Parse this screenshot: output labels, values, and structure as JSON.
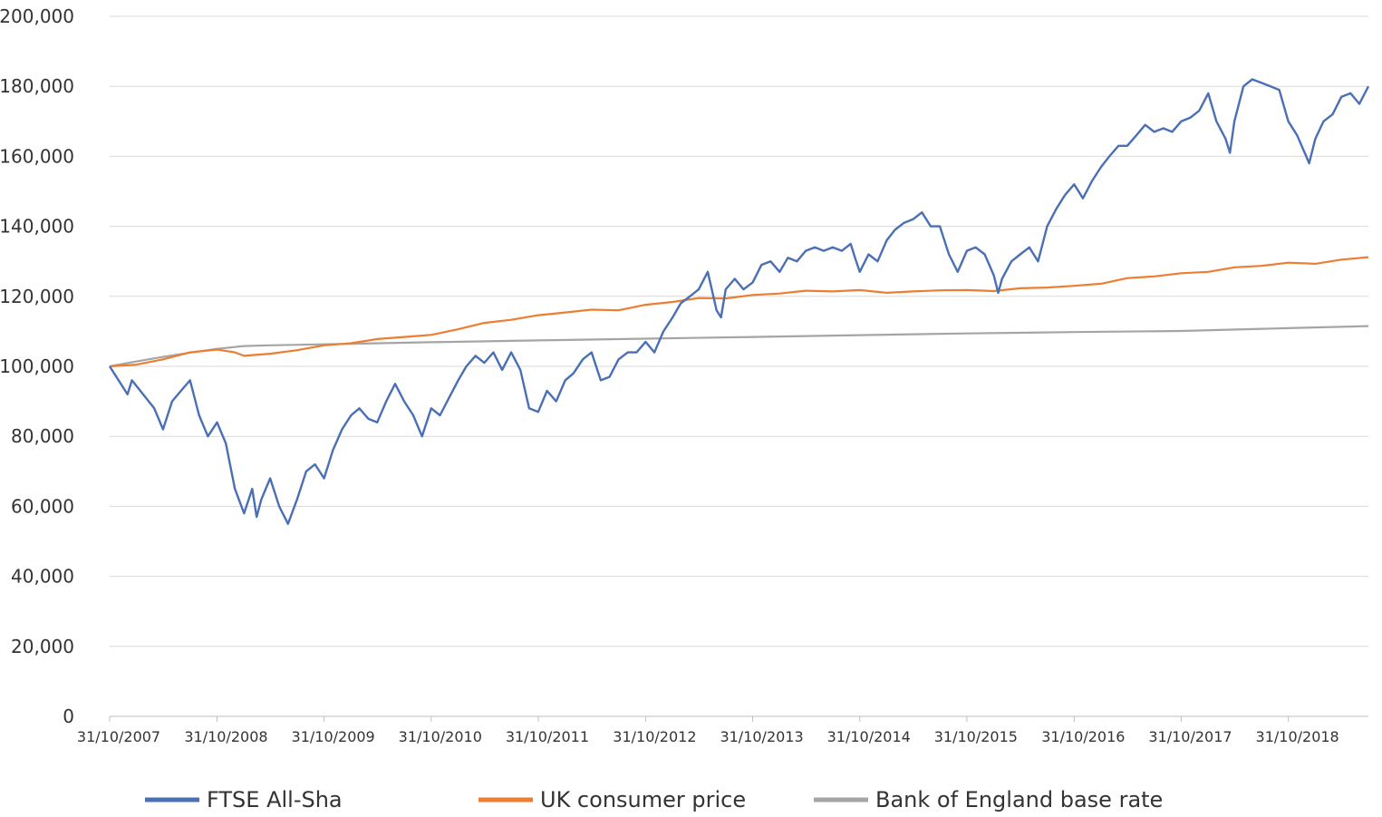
{
  "chart_data": {
    "type": "line",
    "x_format": "DD/MM/YYYY",
    "x_ticks": [
      "31/10/2007",
      "31/10/2008",
      "31/10/2009",
      "31/10/2010",
      "31/10/2011",
      "31/10/2012",
      "31/10/2013",
      "31/10/2014",
      "31/10/2015",
      "31/10/2016",
      "31/10/2017",
      "31/10/2018"
    ],
    "x_range": [
      "31/10/2007",
      "31/07/2019"
    ],
    "y_ticks": [
      "0",
      "20,000",
      "40,000",
      "60,000",
      "80,000",
      "100,000",
      "120,000",
      "140,000",
      "160,000",
      "180,000",
      "200,000"
    ],
    "ylim": [
      0,
      200000
    ],
    "grid": true,
    "legend_position": "bottom",
    "series": [
      {
        "name": "FTSE All-Sha",
        "color": "#4a6fb5",
        "points": [
          [
            "31/10/2007",
            100000
          ],
          [
            "31/12/2007",
            92000
          ],
          [
            "15/01/2008",
            96000
          ],
          [
            "31/03/2008",
            88000
          ],
          [
            "30/04/2008",
            82000
          ],
          [
            "31/05/2008",
            90000
          ],
          [
            "30/06/2008",
            93000
          ],
          [
            "31/07/2008",
            96000
          ],
          [
            "31/08/2008",
            86000
          ],
          [
            "30/09/2008",
            80000
          ],
          [
            "31/10/2008",
            84000
          ],
          [
            "30/11/2008",
            78000
          ],
          [
            "31/12/2008",
            65000
          ],
          [
            "31/01/2009",
            58000
          ],
          [
            "28/02/2009",
            65000
          ],
          [
            "15/03/2009",
            57000
          ],
          [
            "31/03/2009",
            62000
          ],
          [
            "30/04/2009",
            68000
          ],
          [
            "31/05/2009",
            60000
          ],
          [
            "30/06/2009",
            55000
          ],
          [
            "31/07/2009",
            62000
          ],
          [
            "31/08/2009",
            70000
          ],
          [
            "30/09/2009",
            72000
          ],
          [
            "31/10/2009",
            68000
          ],
          [
            "30/11/2009",
            76000
          ],
          [
            "31/12/2009",
            82000
          ],
          [
            "31/01/2010",
            86000
          ],
          [
            "28/02/2010",
            88000
          ],
          [
            "31/03/2010",
            85000
          ],
          [
            "30/04/2010",
            84000
          ],
          [
            "31/05/2010",
            90000
          ],
          [
            "30/06/2010",
            95000
          ],
          [
            "31/07/2010",
            90000
          ],
          [
            "31/08/2010",
            86000
          ],
          [
            "30/09/2010",
            80000
          ],
          [
            "31/10/2010",
            88000
          ],
          [
            "30/11/2010",
            86000
          ],
          [
            "31/12/2010",
            91000
          ],
          [
            "31/01/2011",
            96000
          ],
          [
            "28/02/2011",
            100000
          ],
          [
            "31/03/2011",
            103000
          ],
          [
            "30/04/2011",
            101000
          ],
          [
            "31/05/2011",
            104000
          ],
          [
            "30/06/2011",
            99000
          ],
          [
            "31/07/2011",
            104000
          ],
          [
            "31/08/2011",
            99000
          ],
          [
            "30/09/2011",
            88000
          ],
          [
            "31/10/2011",
            87000
          ],
          [
            "30/11/2011",
            93000
          ],
          [
            "31/12/2011",
            90000
          ],
          [
            "31/01/2012",
            96000
          ],
          [
            "28/02/2012",
            98000
          ],
          [
            "31/03/2012",
            102000
          ],
          [
            "30/04/2012",
            104000
          ],
          [
            "31/05/2012",
            96000
          ],
          [
            "30/06/2012",
            97000
          ],
          [
            "31/07/2012",
            102000
          ],
          [
            "31/08/2012",
            104000
          ],
          [
            "30/09/2012",
            104000
          ],
          [
            "31/10/2012",
            107000
          ],
          [
            "30/11/2012",
            104000
          ],
          [
            "31/12/2012",
            110000
          ],
          [
            "31/01/2013",
            114000
          ],
          [
            "28/02/2013",
            118000
          ],
          [
            "31/03/2013",
            120000
          ],
          [
            "30/04/2013",
            122000
          ],
          [
            "31/05/2013",
            127000
          ],
          [
            "30/06/2013",
            116000
          ],
          [
            "15/07/2013",
            114000
          ],
          [
            "31/07/2013",
            122000
          ],
          [
            "31/08/2013",
            125000
          ],
          [
            "30/09/2013",
            122000
          ],
          [
            "31/10/2013",
            124000
          ],
          [
            "30/11/2013",
            129000
          ],
          [
            "31/12/2013",
            130000
          ],
          [
            "31/01/2014",
            127000
          ],
          [
            "28/02/2014",
            131000
          ],
          [
            "31/03/2014",
            130000
          ],
          [
            "30/04/2014",
            133000
          ],
          [
            "31/05/2014",
            134000
          ],
          [
            "30/06/2014",
            133000
          ],
          [
            "31/07/2014",
            134000
          ],
          [
            "31/08/2014",
            133000
          ],
          [
            "30/09/2014",
            135000
          ],
          [
            "15/10/2014",
            131000
          ],
          [
            "31/10/2014",
            127000
          ],
          [
            "30/11/2014",
            132000
          ],
          [
            "31/12/2014",
            130000
          ],
          [
            "31/01/2015",
            136000
          ],
          [
            "28/02/2015",
            139000
          ],
          [
            "31/03/2015",
            141000
          ],
          [
            "30/04/2015",
            142000
          ],
          [
            "31/05/2015",
            144000
          ],
          [
            "30/06/2015",
            140000
          ],
          [
            "31/07/2015",
            140000
          ],
          [
            "31/08/2015",
            132000
          ],
          [
            "30/09/2015",
            127000
          ],
          [
            "31/10/2015",
            133000
          ],
          [
            "30/11/2015",
            134000
          ],
          [
            "31/12/2015",
            132000
          ],
          [
            "31/01/2016",
            126000
          ],
          [
            "15/02/2016",
            121000
          ],
          [
            "28/02/2016",
            125000
          ],
          [
            "31/03/2016",
            130000
          ],
          [
            "30/04/2016",
            132000
          ],
          [
            "31/05/2016",
            134000
          ],
          [
            "30/06/2016",
            130000
          ],
          [
            "31/07/2016",
            140000
          ],
          [
            "31/08/2016",
            145000
          ],
          [
            "30/09/2016",
            149000
          ],
          [
            "31/10/2016",
            152000
          ],
          [
            "30/11/2016",
            148000
          ],
          [
            "31/12/2016",
            153000
          ],
          [
            "31/01/2017",
            157000
          ],
          [
            "28/02/2017",
            160000
          ],
          [
            "31/03/2017",
            163000
          ],
          [
            "30/04/2017",
            163000
          ],
          [
            "31/05/2017",
            166000
          ],
          [
            "30/06/2017",
            169000
          ],
          [
            "31/07/2017",
            167000
          ],
          [
            "31/08/2017",
            168000
          ],
          [
            "30/09/2017",
            167000
          ],
          [
            "31/10/2017",
            170000
          ],
          [
            "30/11/2017",
            171000
          ],
          [
            "31/12/2017",
            173000
          ],
          [
            "31/01/2018",
            178000
          ],
          [
            "28/02/2018",
            170000
          ],
          [
            "31/03/2018",
            165000
          ],
          [
            "15/04/2018",
            161000
          ],
          [
            "30/04/2018",
            170000
          ],
          [
            "31/05/2018",
            180000
          ],
          [
            "30/06/2018",
            182000
          ],
          [
            "31/07/2018",
            181000
          ],
          [
            "31/08/2018",
            180000
          ],
          [
            "30/09/2018",
            179000
          ],
          [
            "31/10/2018",
            170000
          ],
          [
            "30/11/2018",
            166000
          ],
          [
            "31/12/2018",
            160000
          ],
          [
            "10/01/2019",
            158000
          ],
          [
            "31/01/2019",
            165000
          ],
          [
            "28/02/2019",
            170000
          ],
          [
            "31/03/2019",
            172000
          ],
          [
            "30/04/2019",
            177000
          ],
          [
            "31/05/2019",
            178000
          ],
          [
            "30/06/2019",
            175000
          ],
          [
            "31/07/2019",
            180000
          ]
        ]
      },
      {
        "name": "UK consumer price",
        "color": "#ed7d31",
        "points": [
          [
            "31/10/2007",
            100000
          ],
          [
            "31/01/2008",
            100500
          ],
          [
            "30/04/2008",
            102000
          ],
          [
            "31/07/2008",
            104000
          ],
          [
            "31/10/2008",
            104800
          ],
          [
            "31/12/2008",
            104000
          ],
          [
            "31/01/2009",
            103000
          ],
          [
            "30/04/2009",
            103600
          ],
          [
            "31/07/2009",
            104600
          ],
          [
            "31/10/2009",
            106000
          ],
          [
            "31/01/2010",
            106600
          ],
          [
            "30/04/2010",
            107800
          ],
          [
            "31/07/2010",
            108400
          ],
          [
            "31/10/2010",
            109000
          ],
          [
            "31/01/2011",
            110600
          ],
          [
            "30/04/2011",
            112400
          ],
          [
            "31/07/2011",
            113300
          ],
          [
            "31/10/2011",
            114600
          ],
          [
            "31/01/2012",
            115400
          ],
          [
            "30/04/2012",
            116200
          ],
          [
            "31/07/2012",
            116000
          ],
          [
            "31/10/2012",
            117600
          ],
          [
            "31/01/2013",
            118400
          ],
          [
            "30/04/2013",
            119500
          ],
          [
            "31/07/2013",
            119400
          ],
          [
            "31/10/2013",
            120400
          ],
          [
            "31/01/2014",
            120800
          ],
          [
            "30/04/2014",
            121600
          ],
          [
            "31/07/2014",
            121400
          ],
          [
            "31/10/2014",
            121800
          ],
          [
            "31/01/2015",
            121000
          ],
          [
            "30/04/2015",
            121400
          ],
          [
            "31/07/2015",
            121700
          ],
          [
            "31/10/2015",
            121800
          ],
          [
            "31/01/2016",
            121500
          ],
          [
            "30/04/2016",
            122300
          ],
          [
            "31/07/2016",
            122500
          ],
          [
            "31/10/2016",
            123000
          ],
          [
            "31/01/2017",
            123600
          ],
          [
            "30/04/2017",
            125200
          ],
          [
            "31/07/2017",
            125700
          ],
          [
            "31/10/2017",
            126600
          ],
          [
            "31/01/2018",
            127000
          ],
          [
            "30/04/2018",
            128300
          ],
          [
            "31/07/2018",
            128700
          ],
          [
            "31/10/2018",
            129600
          ],
          [
            "31/01/2019",
            129300
          ],
          [
            "30/04/2019",
            130500
          ],
          [
            "31/07/2019",
            131200
          ]
        ]
      },
      {
        "name": "Bank of England base rate",
        "color": "#a5a5a5",
        "points": [
          [
            "31/10/2007",
            100000
          ],
          [
            "31/01/2008",
            101400
          ],
          [
            "30/04/2008",
            102700
          ],
          [
            "31/07/2008",
            103900
          ],
          [
            "31/10/2008",
            105000
          ],
          [
            "31/01/2009",
            105800
          ],
          [
            "30/04/2009",
            106000
          ],
          [
            "31/10/2009",
            106300
          ],
          [
            "31/10/2010",
            106900
          ],
          [
            "31/10/2011",
            107400
          ],
          [
            "31/10/2012",
            107900
          ],
          [
            "31/10/2013",
            108400
          ],
          [
            "31/10/2014",
            108900
          ],
          [
            "31/10/2015",
            109400
          ],
          [
            "31/10/2016",
            109800
          ],
          [
            "31/10/2017",
            110100
          ],
          [
            "31/10/2018",
            110900
          ],
          [
            "31/07/2019",
            111500
          ]
        ]
      }
    ]
  }
}
